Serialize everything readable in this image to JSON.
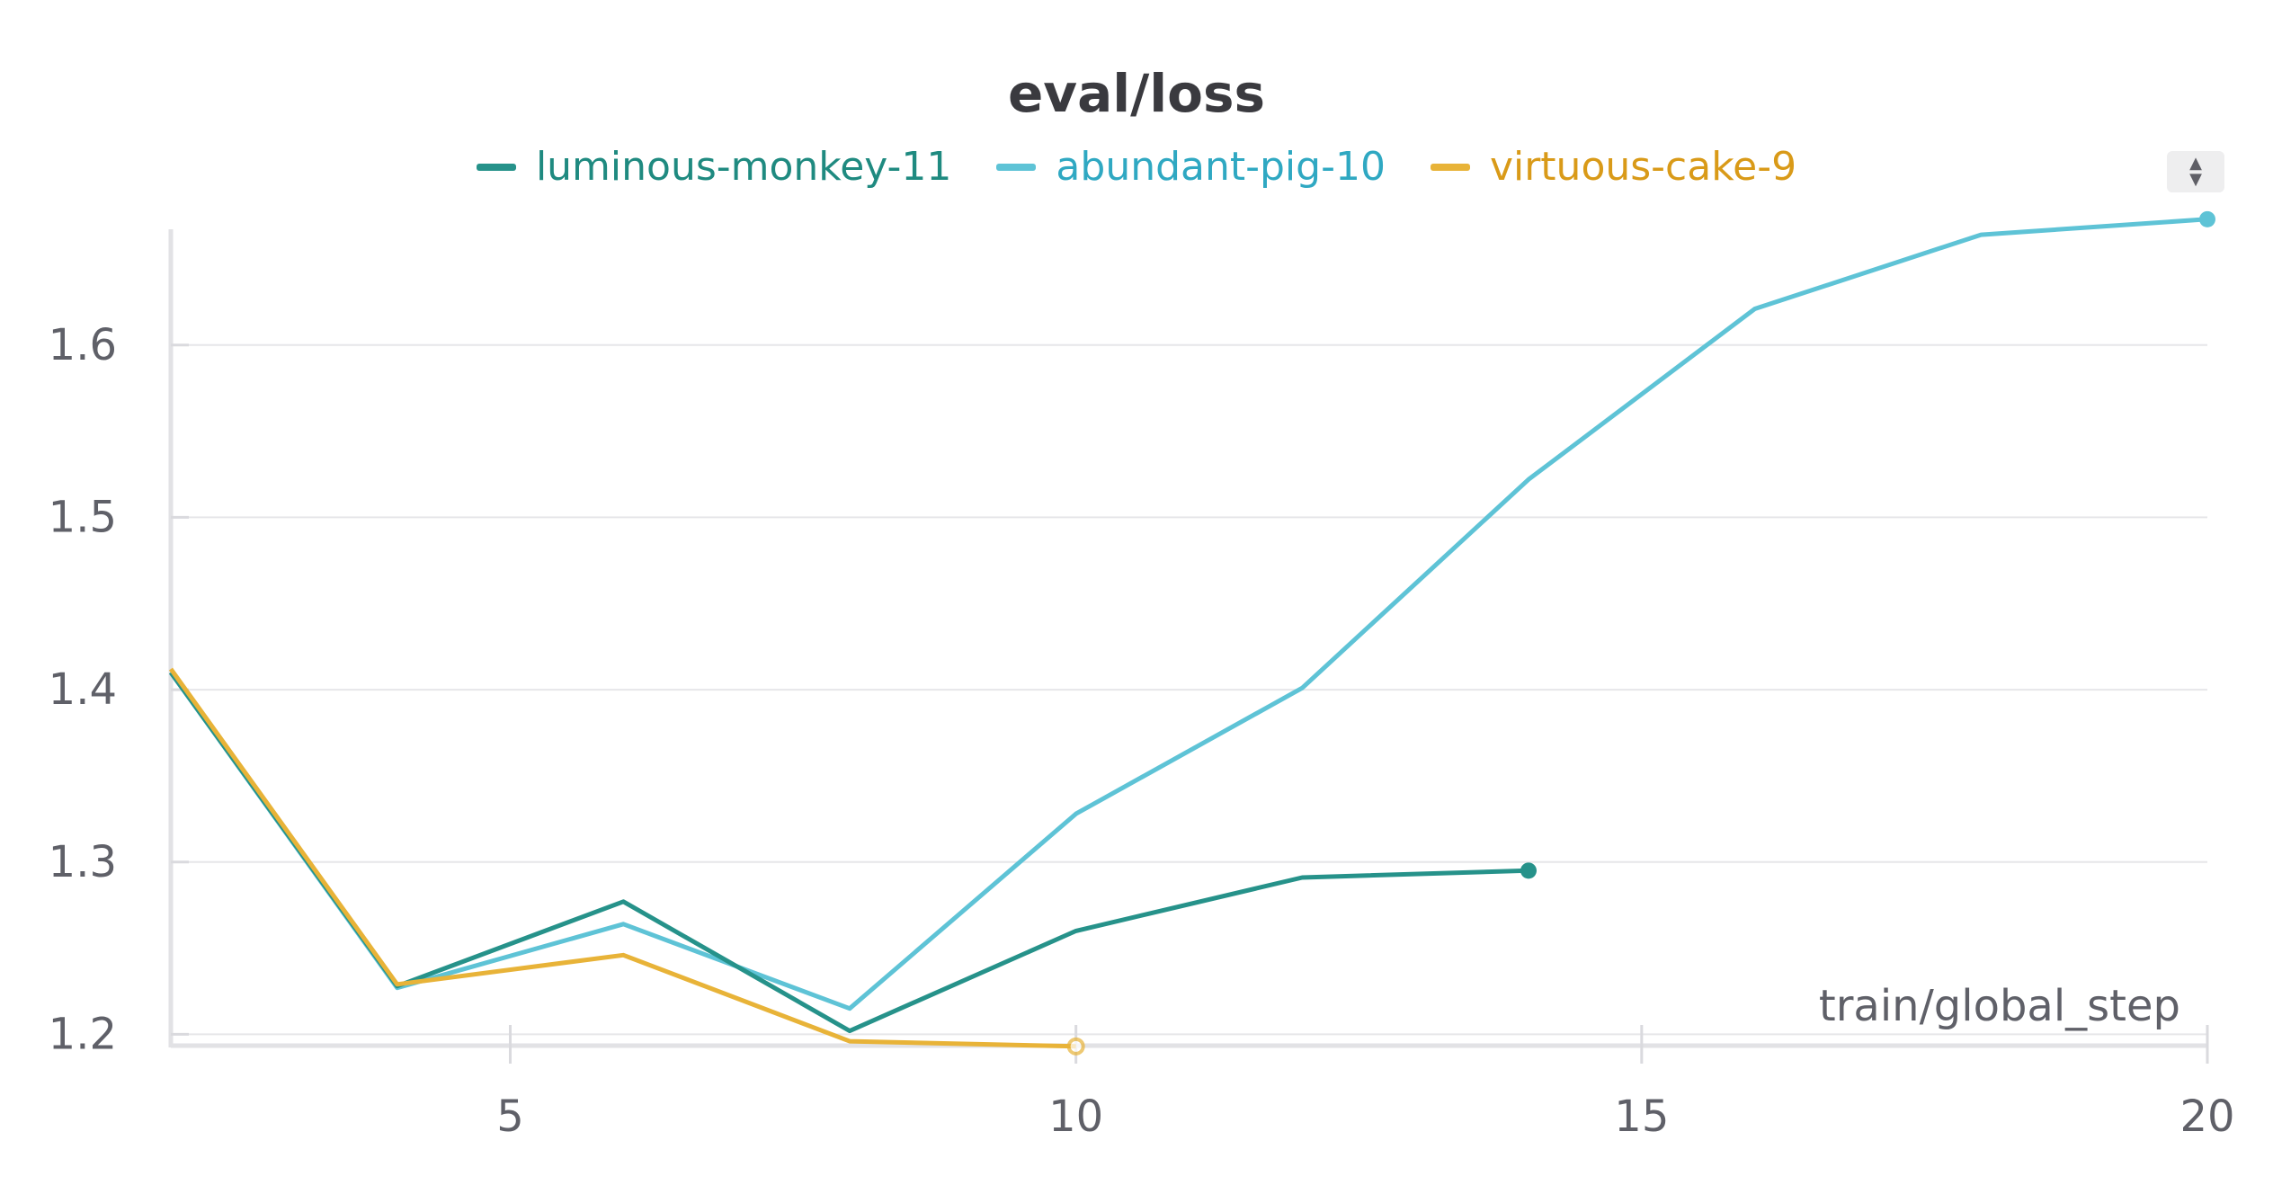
{
  "chart_data": {
    "type": "line",
    "title": "eval/loss",
    "xlabel": "train/global_step",
    "ylabel": "",
    "xlim": [
      2,
      20
    ],
    "ylim": [
      1.195,
      1.675
    ],
    "x_ticks": [
      5,
      10,
      15,
      20
    ],
    "y_ticks": [
      1.2,
      1.3,
      1.4,
      1.5,
      1.6
    ],
    "grid": true,
    "legend_position": "top-center",
    "series": [
      {
        "name": "luminous-monkey-11",
        "color": "#26928a",
        "x": [
          2,
          4,
          6,
          8,
          10,
          12,
          14
        ],
        "values": [
          1.41,
          1.228,
          1.277,
          1.202,
          1.26,
          1.291,
          1.295
        ]
      },
      {
        "name": "abundant-pig-10",
        "color": "#5ec3d6",
        "x": [
          2,
          4,
          6,
          8,
          10,
          12,
          14,
          16,
          18,
          20
        ],
        "values": [
          1.41,
          1.227,
          1.264,
          1.215,
          1.328,
          1.401,
          1.522,
          1.621,
          1.664,
          1.673
        ]
      },
      {
        "name": "virtuous-cake-9",
        "color": "#e8b338",
        "x": [
          2,
          4,
          6,
          8,
          10
        ],
        "values": [
          1.412,
          1.229,
          1.246,
          1.196,
          1.193
        ]
      }
    ]
  },
  "ui": {
    "sort_icon": "up-down-sort-icon"
  }
}
